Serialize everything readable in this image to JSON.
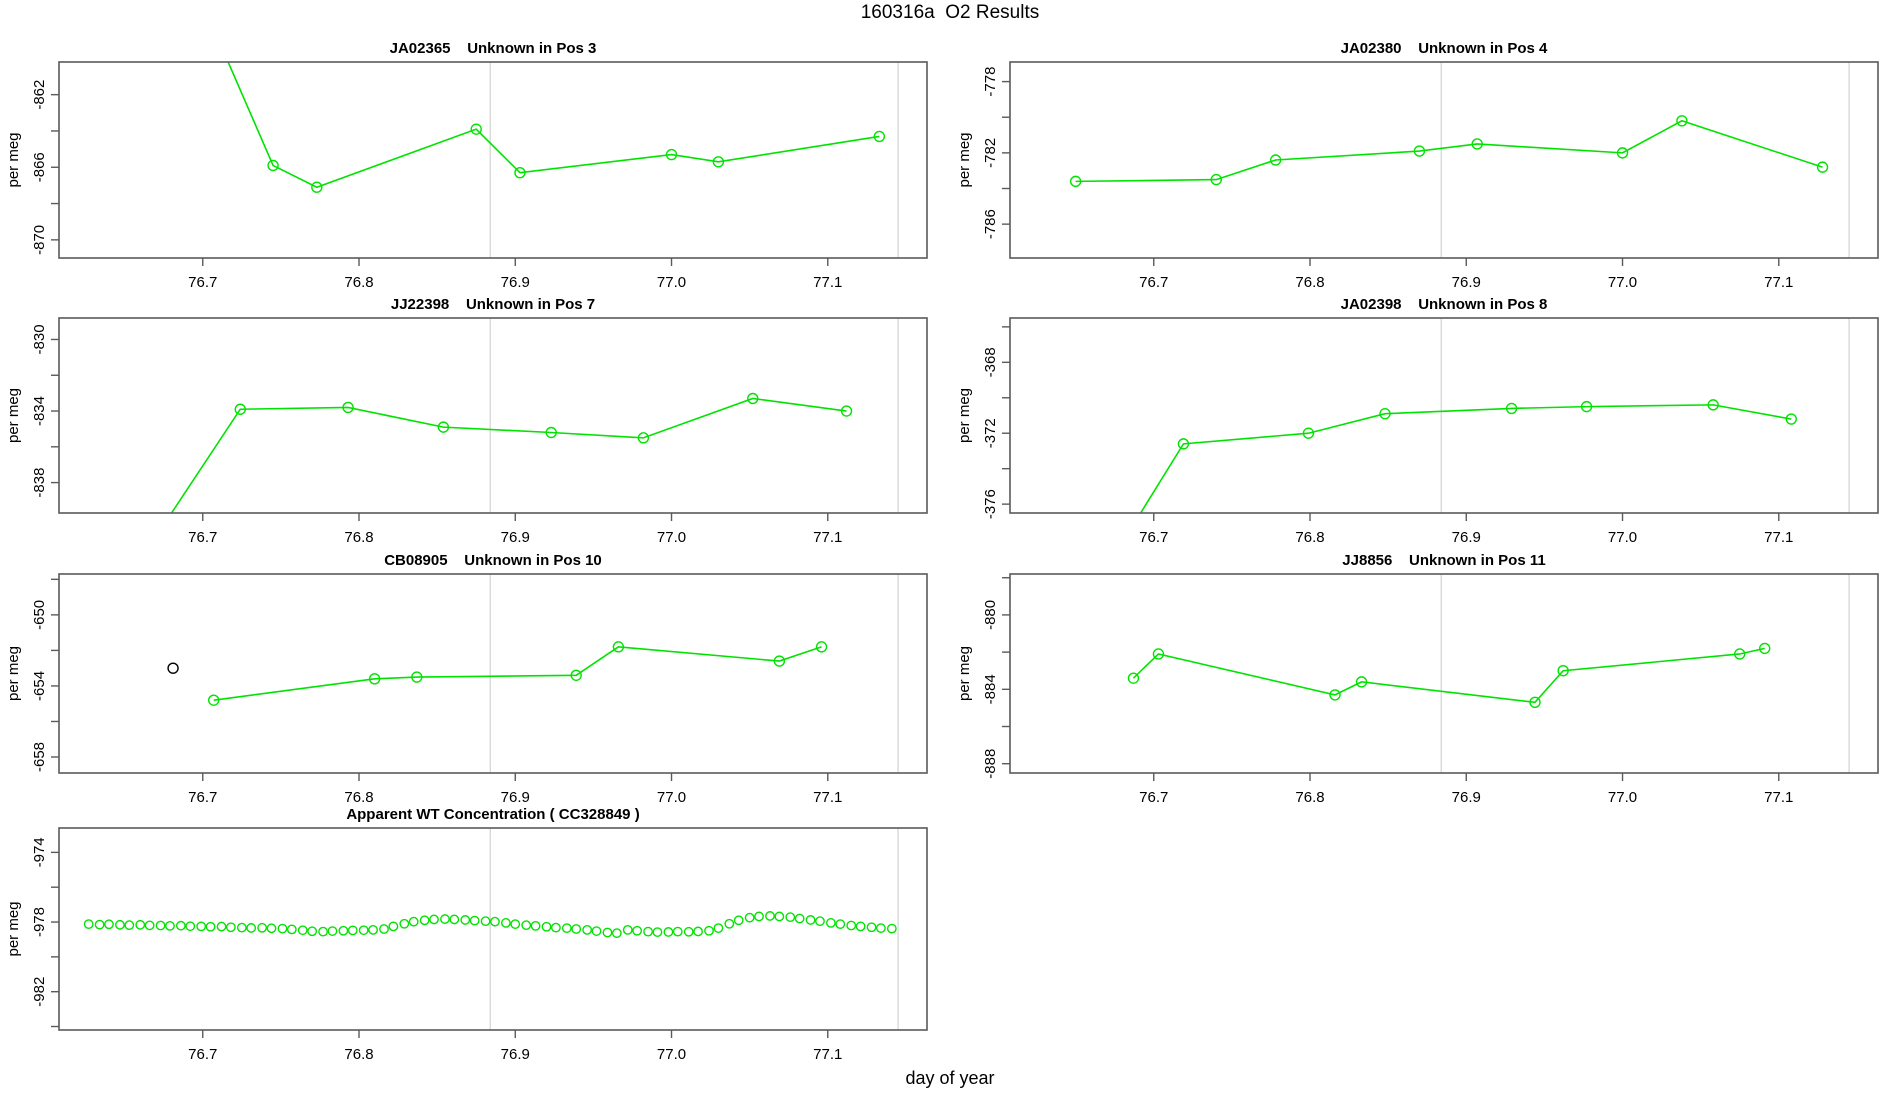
{
  "title": "160316a  O2 Results",
  "xlabel": "day of year",
  "axes": {
    "xlim": [
      76.608,
      77.1635
    ],
    "xticks": {
      "values": [
        76.7,
        76.8,
        76.9,
        77.0,
        77.1
      ],
      "labels": [
        "76.7",
        "76.8",
        "76.9",
        "77.0",
        "77.1"
      ]
    },
    "gridlines_x": [
      76.884,
      77.145
    ],
    "grid_color": "#d9d9d9",
    "axis_color": "#5a5a5a",
    "series_color": "#00e300",
    "outlier_color": "#000000"
  },
  "chart_data": [
    {
      "type": "line",
      "title": "JA02365    Unknown in Pos 3",
      "ylabel": "per meg",
      "ylim": [
        -871.0,
        -860.2
      ],
      "ytick_labels": [
        -862,
        -866,
        -870
      ],
      "marker": "open-circle",
      "points": [
        [
          76.69,
          -855.0
        ],
        [
          76.745,
          -865.9
        ],
        [
          76.773,
          -867.1
        ],
        [
          76.875,
          -863.9
        ],
        [
          76.903,
          -866.3
        ],
        [
          77.0,
          -865.3
        ],
        [
          77.03,
          -865.7
        ],
        [
          77.133,
          -864.3
        ]
      ]
    },
    {
      "type": "line",
      "title": "JA02380    Unknown in Pos 4",
      "ylabel": "per meg",
      "ylim": [
        -787.9,
        -776.9
      ],
      "ytick_labels": [
        -778,
        -782,
        -786
      ],
      "marker": "open-circle",
      "points": [
        [
          76.65,
          -783.6
        ],
        [
          76.74,
          -783.5
        ],
        [
          76.778,
          -782.4
        ],
        [
          76.87,
          -781.9
        ],
        [
          76.907,
          -781.5
        ],
        [
          77.0,
          -782.0
        ],
        [
          77.038,
          -780.2
        ],
        [
          77.128,
          -782.8
        ]
      ]
    },
    {
      "type": "line",
      "title": "JJ22398    Unknown in Pos 7",
      "ylabel": "per meg",
      "ylim": [
        -839.7,
        -828.8
      ],
      "ytick_labels": [
        -830,
        -834,
        -838
      ],
      "marker": "open-circle",
      "points": [
        [
          76.655,
          -843.0
        ],
        [
          76.724,
          -833.9
        ],
        [
          76.793,
          -833.8
        ],
        [
          76.854,
          -834.9
        ],
        [
          76.923,
          -835.2
        ],
        [
          76.982,
          -835.5
        ],
        [
          77.052,
          -833.3
        ],
        [
          77.112,
          -834.0
        ]
      ]
    },
    {
      "type": "line",
      "title": "JA02398    Unknown in Pos 8",
      "ylabel": "per meg",
      "ylim": [
        -376.5,
        -365.5
      ],
      "ytick_labels": [
        -368,
        -372,
        -376
      ],
      "marker": "open-circle",
      "points": [
        [
          76.66,
          -381.0
        ],
        [
          76.719,
          -372.6
        ],
        [
          76.799,
          -372.0
        ],
        [
          76.848,
          -370.9
        ],
        [
          76.929,
          -370.6
        ],
        [
          76.977,
          -370.5
        ],
        [
          77.058,
          -370.4
        ],
        [
          77.108,
          -371.2
        ]
      ]
    },
    {
      "type": "line",
      "title": "CB08905    Unknown in Pos 10",
      "ylabel": "per meg",
      "ylim": [
        -658.9,
        -647.7
      ],
      "ytick_labels": [
        -650,
        -654,
        -658
      ],
      "marker": "open-circle",
      "outlier_point": [
        76.681,
        -653.0
      ],
      "points": [
        [
          76.707,
          -654.8
        ],
        [
          76.81,
          -653.6
        ],
        [
          76.837,
          -653.5
        ],
        [
          76.939,
          -653.4
        ],
        [
          76.966,
          -651.8
        ],
        [
          77.069,
          -652.6
        ],
        [
          77.096,
          -651.8
        ]
      ]
    },
    {
      "type": "line",
      "title": "JJ8856    Unknown in Pos 11",
      "ylabel": "per meg",
      "ylim": [
        -888.5,
        -877.8
      ],
      "ytick_labels": [
        -880,
        -884,
        -888
      ],
      "marker": "open-circle",
      "points": [
        [
          76.687,
          -883.4
        ],
        [
          76.703,
          -882.1
        ],
        [
          76.816,
          -884.3
        ],
        [
          76.833,
          -883.6
        ],
        [
          76.944,
          -884.7
        ],
        [
          76.962,
          -883.0
        ],
        [
          77.075,
          -882.1
        ],
        [
          77.091,
          -881.8
        ]
      ]
    },
    {
      "type": "scatter",
      "title": "Apparent WT Concentration ( CC328849 )",
      "ylabel": "per meg",
      "ylim": [
        -984.2,
        -972.6
      ],
      "ytick_labels": [
        -974,
        -978,
        -982
      ],
      "marker": "open-circle",
      "points": [
        [
          76.627,
          -978.12
        ],
        [
          76.634,
          -978.15
        ],
        [
          76.64,
          -978.13
        ],
        [
          76.647,
          -978.16
        ],
        [
          76.653,
          -978.18
        ],
        [
          76.66,
          -978.16
        ],
        [
          76.666,
          -978.19
        ],
        [
          76.673,
          -978.2
        ],
        [
          76.679,
          -978.22
        ],
        [
          76.686,
          -978.21
        ],
        [
          76.692,
          -978.24
        ],
        [
          76.699,
          -978.25
        ],
        [
          76.705,
          -978.27
        ],
        [
          76.712,
          -978.26
        ],
        [
          76.718,
          -978.3
        ],
        [
          76.725,
          -978.32
        ],
        [
          76.731,
          -978.34
        ],
        [
          76.738,
          -978.33
        ],
        [
          76.744,
          -978.36
        ],
        [
          76.751,
          -978.38
        ],
        [
          76.757,
          -978.42
        ],
        [
          76.764,
          -978.47
        ],
        [
          76.77,
          -978.53
        ],
        [
          76.777,
          -978.55
        ],
        [
          76.783,
          -978.52
        ],
        [
          76.79,
          -978.5
        ],
        [
          76.796,
          -978.48
        ],
        [
          76.803,
          -978.47
        ],
        [
          76.809,
          -978.45
        ],
        [
          76.816,
          -978.4
        ],
        [
          76.822,
          -978.25
        ],
        [
          76.829,
          -978.1
        ],
        [
          76.835,
          -977.98
        ],
        [
          76.842,
          -977.9
        ],
        [
          76.848,
          -977.85
        ],
        [
          76.855,
          -977.83
        ],
        [
          76.861,
          -977.85
        ],
        [
          76.868,
          -977.88
        ],
        [
          76.874,
          -977.92
        ],
        [
          76.881,
          -977.95
        ],
        [
          76.887,
          -977.98
        ],
        [
          76.894,
          -978.05
        ],
        [
          76.9,
          -978.12
        ],
        [
          76.907,
          -978.18
        ],
        [
          76.913,
          -978.22
        ],
        [
          76.92,
          -978.27
        ],
        [
          76.926,
          -978.32
        ],
        [
          76.933,
          -978.35
        ],
        [
          76.939,
          -978.4
        ],
        [
          76.946,
          -978.45
        ],
        [
          76.952,
          -978.52
        ],
        [
          76.959,
          -978.6
        ],
        [
          76.965,
          -978.64
        ],
        [
          76.972,
          -978.45
        ],
        [
          76.978,
          -978.5
        ],
        [
          76.985,
          -978.55
        ],
        [
          76.991,
          -978.58
        ],
        [
          76.998,
          -978.57
        ],
        [
          77.004,
          -978.55
        ],
        [
          77.011,
          -978.56
        ],
        [
          77.017,
          -978.54
        ],
        [
          77.024,
          -978.5
        ],
        [
          77.03,
          -978.35
        ],
        [
          77.037,
          -978.1
        ],
        [
          77.043,
          -977.9
        ],
        [
          77.05,
          -977.75
        ],
        [
          77.056,
          -977.68
        ],
        [
          77.063,
          -977.65
        ],
        [
          77.069,
          -977.68
        ],
        [
          77.076,
          -977.72
        ],
        [
          77.082,
          -977.8
        ],
        [
          77.089,
          -977.88
        ],
        [
          77.095,
          -977.95
        ],
        [
          77.102,
          -978.05
        ],
        [
          77.108,
          -978.12
        ],
        [
          77.115,
          -978.2
        ],
        [
          77.121,
          -978.25
        ],
        [
          77.128,
          -978.3
        ],
        [
          77.134,
          -978.35
        ],
        [
          77.141,
          -978.38
        ]
      ]
    }
  ]
}
